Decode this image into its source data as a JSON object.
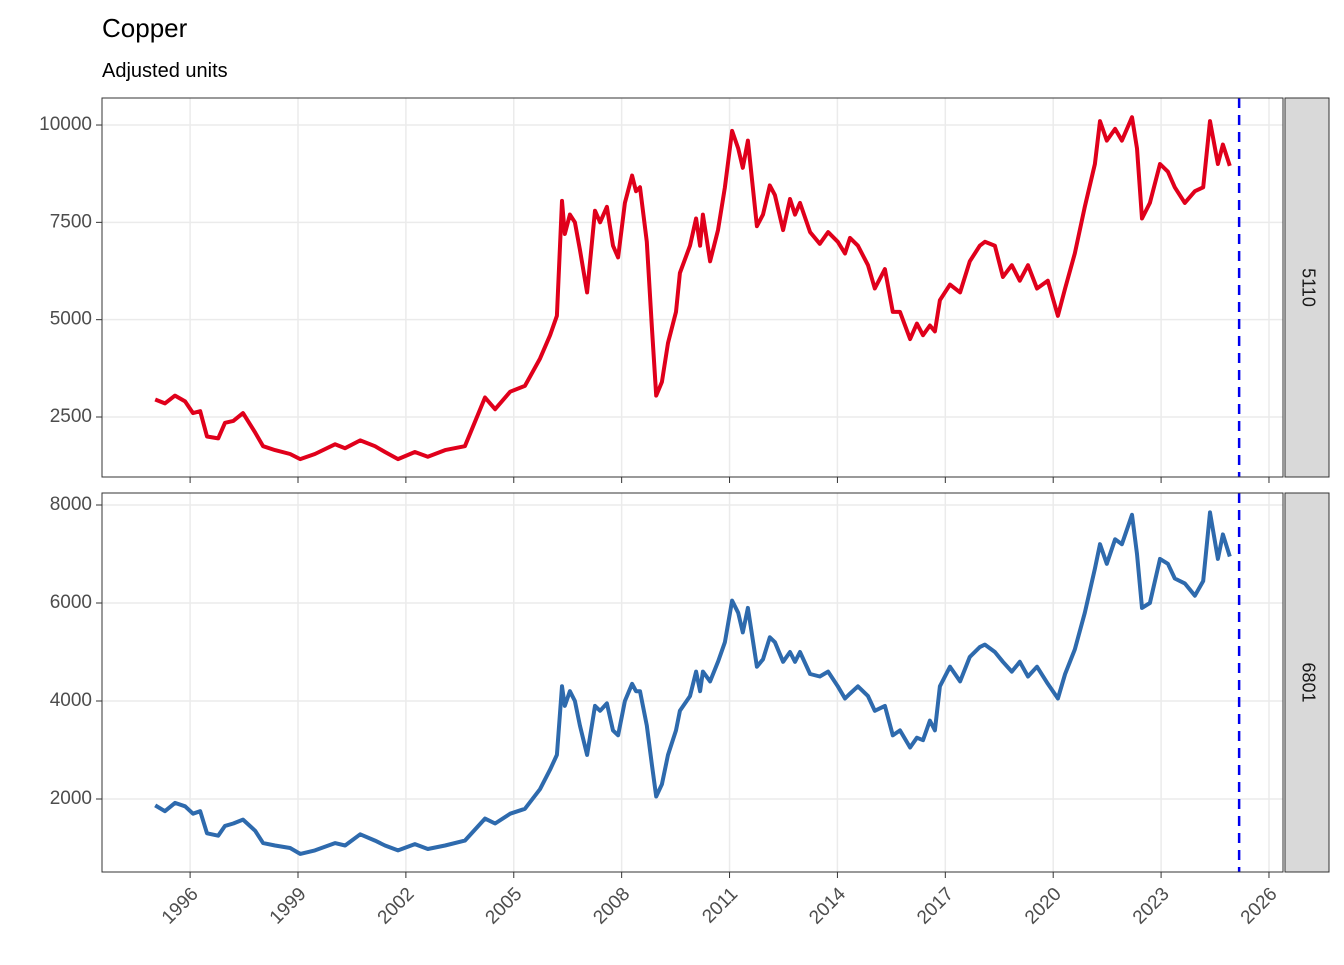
{
  "title": "Copper",
  "subtitle": "Adjusted units",
  "chart_data": [
    {
      "type": "line",
      "panel": "5110",
      "x": [
        1995.03,
        1995.3,
        1995.58,
        1995.86,
        1996.08,
        1996.28,
        1996.47,
        1996.78,
        1996.97,
        1997.2,
        1997.47,
        1997.81,
        1998.03,
        1998.36,
        1998.78,
        1999.06,
        1999.47,
        2000.03,
        2000.31,
        2000.73,
        2001.14,
        2001.42,
        2001.78,
        2002.25,
        2002.61,
        2003.09,
        2003.64,
        2004.2,
        2004.48,
        2004.9,
        2005.31,
        2005.73,
        2006.01,
        2006.2,
        2006.34,
        2006.42,
        2006.56,
        2006.7,
        2006.84,
        2007.04,
        2007.26,
        2007.4,
        2007.59,
        2007.76,
        2007.9,
        2008.09,
        2008.29,
        2008.4,
        2008.51,
        2008.7,
        2008.84,
        2008.96,
        2009.12,
        2009.29,
        2009.51,
        2009.62,
        2009.9,
        2010.07,
        2010.18,
        2010.26,
        2010.46,
        2010.68,
        2010.87,
        2011.07,
        2011.24,
        2011.37,
        2011.51,
        2011.76,
        2011.93,
        2012.12,
        2012.26,
        2012.49,
        2012.68,
        2012.82,
        2012.96,
        2013.24,
        2013.51,
        2013.74,
        2014.01,
        2014.21,
        2014.35,
        2014.57,
        2014.85,
        2015.04,
        2015.32,
        2015.54,
        2015.74,
        2016.02,
        2016.21,
        2016.38,
        2016.57,
        2016.71,
        2016.85,
        2017.13,
        2017.41,
        2017.68,
        2017.96,
        2018.1,
        2018.38,
        2018.6,
        2018.85,
        2019.07,
        2019.3,
        2019.55,
        2019.85,
        2020.13,
        2020.33,
        2020.6,
        2020.88,
        2021.16,
        2021.3,
        2021.49,
        2021.72,
        2021.91,
        2022.19,
        2022.33,
        2022.47,
        2022.69,
        2022.97,
        2023.19,
        2023.38,
        2023.66,
        2023.94,
        2024.17,
        2024.36,
        2024.58,
        2024.72,
        2024.91
      ],
      "series": [
        {
          "color": "#e0001b",
          "values": [
            2950,
            2850,
            3050,
            2900,
            2600,
            2650,
            2000,
            1950,
            2350,
            2400,
            2600,
            2100,
            1750,
            1650,
            1550,
            1420,
            1550,
            1800,
            1700,
            1900,
            1750,
            1600,
            1420,
            1600,
            1480,
            1650,
            1750,
            3000,
            2700,
            3150,
            3300,
            4000,
            4600,
            5100,
            8050,
            7200,
            7700,
            7500,
            6800,
            5700,
            7800,
            7500,
            7900,
            6900,
            6600,
            8000,
            8700,
            8300,
            8400,
            7000,
            4800,
            3050,
            3400,
            4400,
            5200,
            6200,
            6900,
            7600,
            6900,
            7700,
            6500,
            7300,
            8400,
            9850,
            9400,
            8900,
            9600,
            7400,
            7700,
            8450,
            8200,
            7300,
            8100,
            7700,
            8000,
            7250,
            6950,
            7250,
            7000,
            6700,
            7100,
            6900,
            6400,
            5800,
            6300,
            5200,
            5200,
            4500,
            4900,
            4600,
            4850,
            4700,
            5500,
            5900,
            5700,
            6500,
            6900,
            7000,
            6900,
            6100,
            6400,
            6000,
            6400,
            5800,
            6000,
            5100,
            5800,
            6700,
            7900,
            9000,
            10100,
            9600,
            9900,
            9600,
            10200,
            9400,
            7600,
            8000,
            9000,
            8800,
            8400,
            8000,
            8300,
            8400,
            10100,
            9000,
            9500,
            8950
          ]
        }
      ],
      "xlim": [
        1993.55,
        2026.39
      ],
      "ylim": [
        959,
        10694
      ],
      "yticks": [
        2500,
        5000,
        7500,
        10000
      ],
      "xticks": [
        1996,
        1999,
        2002,
        2005,
        2008,
        2011,
        2014,
        2017,
        2020,
        2023,
        2026
      ],
      "vline": 2025.17,
      "vline_color": "#0000ee",
      "grid": true
    },
    {
      "type": "line",
      "panel": "6801",
      "x": [
        1995.03,
        1995.3,
        1995.58,
        1995.86,
        1996.08,
        1996.28,
        1996.47,
        1996.78,
        1996.97,
        1997.2,
        1997.47,
        1997.81,
        1998.03,
        1998.36,
        1998.78,
        1999.06,
        1999.47,
        2000.03,
        2000.31,
        2000.73,
        2001.14,
        2001.42,
        2001.78,
        2002.25,
        2002.61,
        2003.09,
        2003.64,
        2004.2,
        2004.48,
        2004.9,
        2005.31,
        2005.73,
        2006.01,
        2006.2,
        2006.34,
        2006.42,
        2006.56,
        2006.7,
        2006.84,
        2007.04,
        2007.26,
        2007.4,
        2007.59,
        2007.76,
        2007.9,
        2008.09,
        2008.29,
        2008.4,
        2008.51,
        2008.7,
        2008.84,
        2008.96,
        2009.12,
        2009.29,
        2009.51,
        2009.62,
        2009.9,
        2010.07,
        2010.18,
        2010.26,
        2010.46,
        2010.68,
        2010.87,
        2011.07,
        2011.24,
        2011.37,
        2011.51,
        2011.76,
        2011.93,
        2012.12,
        2012.26,
        2012.49,
        2012.68,
        2012.82,
        2012.96,
        2013.24,
        2013.51,
        2013.74,
        2014.01,
        2014.21,
        2014.35,
        2014.57,
        2014.85,
        2015.04,
        2015.32,
        2015.54,
        2015.74,
        2016.02,
        2016.21,
        2016.38,
        2016.57,
        2016.71,
        2016.85,
        2017.13,
        2017.41,
        2017.68,
        2017.96,
        2018.1,
        2018.38,
        2018.6,
        2018.85,
        2019.07,
        2019.3,
        2019.55,
        2019.85,
        2020.13,
        2020.33,
        2020.6,
        2020.88,
        2021.16,
        2021.3,
        2021.49,
        2021.72,
        2021.91,
        2022.19,
        2022.33,
        2022.47,
        2022.69,
        2022.97,
        2023.19,
        2023.38,
        2023.66,
        2023.94,
        2024.17,
        2024.36,
        2024.58,
        2024.72,
        2024.91
      ],
      "series": [
        {
          "color": "#2e6aad",
          "values": [
            1870,
            1750,
            1920,
            1850,
            1700,
            1750,
            1300,
            1250,
            1450,
            1500,
            1580,
            1350,
            1100,
            1050,
            1000,
            880,
            950,
            1100,
            1050,
            1280,
            1150,
            1050,
            950,
            1080,
            980,
            1050,
            1150,
            1600,
            1500,
            1700,
            1800,
            2200,
            2600,
            2900,
            4300,
            3900,
            4200,
            4000,
            3500,
            2900,
            3900,
            3800,
            3950,
            3400,
            3300,
            4000,
            4350,
            4200,
            4200,
            3500,
            2700,
            2050,
            2300,
            2900,
            3400,
            3800,
            4100,
            4600,
            4200,
            4600,
            4400,
            4800,
            5200,
            6050,
            5800,
            5400,
            5900,
            4700,
            4850,
            5300,
            5200,
            4800,
            5000,
            4800,
            5000,
            4550,
            4500,
            4600,
            4300,
            4050,
            4150,
            4300,
            4100,
            3800,
            3900,
            3300,
            3400,
            3050,
            3250,
            3200,
            3600,
            3400,
            4300,
            4700,
            4400,
            4900,
            5100,
            5150,
            5000,
            4800,
            4600,
            4800,
            4500,
            4700,
            4350,
            4050,
            4550,
            5050,
            5800,
            6700,
            7200,
            6800,
            7300,
            7200,
            7800,
            7000,
            5900,
            6000,
            6900,
            6800,
            6500,
            6400,
            6150,
            6450,
            7850,
            6900,
            7400,
            6950
          ]
        }
      ],
      "xlim": [
        1993.55,
        2026.39
      ],
      "ylim": [
        510,
        8245
      ],
      "yticks": [
        2000,
        4000,
        6000,
        8000
      ],
      "xticks": [
        1996,
        1999,
        2002,
        2005,
        2008,
        2011,
        2014,
        2017,
        2020,
        2023,
        2026
      ],
      "vline": 2025.17,
      "vline_color": "#0000ee",
      "grid": true
    }
  ]
}
